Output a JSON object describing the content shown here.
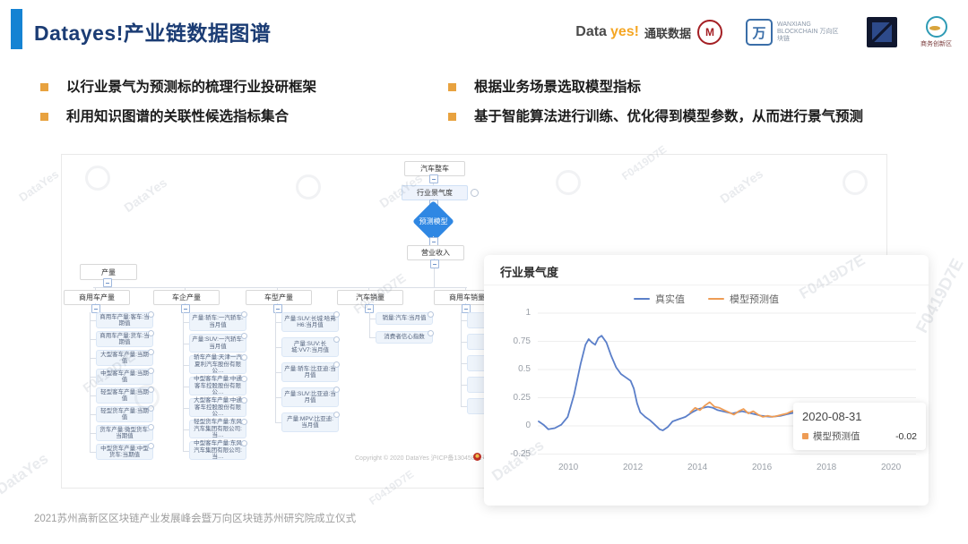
{
  "header": {
    "title": "Datayes!产业链数据图谱"
  },
  "logos": {
    "datayes": {
      "primary": "Data",
      "accent": "yes!",
      "cn": "通联数据",
      "seal_glyph": "M"
    },
    "wanxiang": {
      "glyph": "万",
      "text": "WANXIANG BLOCKCHAIN 万向区块链"
    },
    "innovation": {
      "caption": "商务创新区"
    }
  },
  "bullets": {
    "left": [
      "以行业景气为预测标的梳理行业投研框架",
      "利用知识图谱的关联性候选指标集合"
    ],
    "right": [
      "根据业务场景选取模型指标",
      "基于智能算法进行训练、优化得到模型参数，从而进行景气预测"
    ]
  },
  "flowchart": {
    "nodes": {
      "auto": "汽车整车",
      "prosperity": "行业景气度",
      "model": "预测模型",
      "revenue": "营业收入",
      "production": "产量"
    },
    "columns": [
      {
        "header": "商用车产量",
        "items": [
          "商用车产量:客车:当期值",
          "商用车产量:货车:当期值",
          "大型客车产量:当期值",
          "中型客车产量:当期值",
          "轻型客车产量:当期值",
          "轻型货车产量:当期值",
          "货车产量:微型货车:当期值",
          "中型货车产量:中型货车:当期值"
        ]
      },
      {
        "header": "车企产量",
        "items": [
          "产量:轿车:一汽轿车:当月值",
          "产量:SUV:一汽轿车:当月值",
          "轿车产量:天津一汽夏利汽车股份有限公…",
          "中型客车产量:中通客车控股股份有限公…",
          "大型客车产量:中通客车控股股份有限公…",
          "轻型货车产量:东风汽车集团有限公司:当…",
          "中型客车产量:东风汽车集团有限公司:当…"
        ]
      },
      {
        "header": "车型产量",
        "items": [
          "产量:SUV:长城:哈弗H6:当月值",
          "产量:SUV:长城:VV7:当月值",
          "产量:轿车:比亚迪:当月值",
          "产量:SUV:比亚迪:当月值",
          "产量:MPV:比亚迪:当月值"
        ]
      },
      {
        "header": "汽车销量",
        "items": [
          "销量:汽车:当月值",
          "消费者信心指数"
        ]
      },
      {
        "header": "商用车销量",
        "items": [
          "商用车…",
          "商用车…",
          "商用车…",
          "商用车…",
          "上海汽…"
        ]
      }
    ],
    "copyright": "Copyright © 2020 DataYes  沪ICP备13045831号"
  },
  "chart": {
    "title": "行业景气度",
    "tooltip": {
      "date": "2020-08-31",
      "label": "模型预测值",
      "value": "-0.02"
    }
  },
  "chart_data": {
    "type": "line",
    "title": "行业景气度",
    "xlabel": "",
    "ylabel": "",
    "x_ticks": [
      2010,
      2012,
      2014,
      2016,
      2018,
      2020
    ],
    "y_ticks": [
      1,
      0.75,
      0.5,
      0.25,
      0,
      -0.25
    ],
    "xlim": [
      2009,
      2020.8
    ],
    "ylim": [
      -0.25,
      1
    ],
    "grid": true,
    "legend_position": "top-center",
    "colors": {
      "actual": "#5b7fc9",
      "predicted": "#ee9c55"
    },
    "series": [
      {
        "name": "真实值",
        "color": "#5b7fc9",
        "points": [
          [
            2009.0,
            0.04
          ],
          [
            2009.15,
            0.01
          ],
          [
            2009.3,
            -0.03
          ],
          [
            2009.5,
            -0.02
          ],
          [
            2009.7,
            0.01
          ],
          [
            2009.9,
            0.08
          ],
          [
            2010.1,
            0.28
          ],
          [
            2010.3,
            0.55
          ],
          [
            2010.45,
            0.72
          ],
          [
            2010.55,
            0.77
          ],
          [
            2010.65,
            0.74
          ],
          [
            2010.75,
            0.72
          ],
          [
            2010.85,
            0.78
          ],
          [
            2010.95,
            0.8
          ],
          [
            2011.1,
            0.74
          ],
          [
            2011.25,
            0.62
          ],
          [
            2011.4,
            0.52
          ],
          [
            2011.55,
            0.46
          ],
          [
            2011.7,
            0.43
          ],
          [
            2011.85,
            0.4
          ],
          [
            2011.95,
            0.33
          ],
          [
            2012.05,
            0.2
          ],
          [
            2012.15,
            0.12
          ],
          [
            2012.3,
            0.08
          ],
          [
            2012.45,
            0.05
          ],
          [
            2012.6,
            0.01
          ],
          [
            2012.75,
            -0.03
          ],
          [
            2012.85,
            -0.04
          ],
          [
            2013.0,
            -0.01
          ],
          [
            2013.15,
            0.04
          ],
          [
            2013.35,
            0.06
          ],
          [
            2013.55,
            0.08
          ],
          [
            2013.75,
            0.12
          ],
          [
            2013.95,
            0.15
          ],
          [
            2014.1,
            0.16
          ],
          [
            2014.25,
            0.17
          ],
          [
            2014.4,
            0.16
          ],
          [
            2014.55,
            0.14
          ],
          [
            2014.7,
            0.13
          ],
          [
            2014.85,
            0.12
          ],
          [
            2015.0,
            0.11
          ],
          [
            2015.15,
            0.12
          ],
          [
            2015.3,
            0.13
          ],
          [
            2015.45,
            0.12
          ],
          [
            2015.6,
            0.11
          ],
          [
            2015.75,
            0.1
          ],
          [
            2015.9,
            0.09
          ],
          [
            2016.05,
            0.085
          ],
          [
            2016.2,
            0.08
          ],
          [
            2016.35,
            0.085
          ],
          [
            2016.5,
            0.09
          ],
          [
            2016.65,
            0.1
          ],
          [
            2016.8,
            0.11
          ],
          [
            2016.95,
            0.12
          ],
          [
            2017.1,
            0.13
          ]
        ]
      },
      {
        "name": "模型预测值",
        "color": "#ee9c55",
        "points": [
          [
            2013.7,
            0.12
          ],
          [
            2013.85,
            0.16
          ],
          [
            2014.0,
            0.14
          ],
          [
            2014.15,
            0.18
          ],
          [
            2014.3,
            0.21
          ],
          [
            2014.45,
            0.17
          ],
          [
            2014.6,
            0.16
          ],
          [
            2014.75,
            0.14
          ],
          [
            2014.9,
            0.12
          ],
          [
            2015.05,
            0.1
          ],
          [
            2015.2,
            0.13
          ],
          [
            2015.35,
            0.15
          ],
          [
            2015.5,
            0.11
          ],
          [
            2015.65,
            0.13
          ],
          [
            2015.8,
            0.1
          ],
          [
            2015.95,
            0.08
          ],
          [
            2016.1,
            0.09
          ],
          [
            2016.25,
            0.08
          ],
          [
            2016.4,
            0.09
          ],
          [
            2016.55,
            0.1
          ],
          [
            2016.7,
            0.11
          ],
          [
            2016.85,
            0.13
          ],
          [
            2017.0,
            0.14
          ],
          [
            2017.3,
            0.11
          ],
          [
            2017.7,
            0.07
          ],
          [
            2018.1,
            0.04
          ],
          [
            2018.5,
            0.01
          ],
          [
            2018.9,
            -0.01
          ],
          [
            2019.3,
            -0.02
          ],
          [
            2019.7,
            -0.04
          ],
          [
            2020.0,
            -0.045
          ],
          [
            2020.2,
            -0.04
          ],
          [
            2020.42,
            -0.02
          ],
          [
            2020.6,
            0.0
          ],
          [
            2020.7,
            0.03
          ]
        ]
      }
    ],
    "highlight_point": {
      "series": "模型预测值",
      "date": "2020-08-31",
      "x": 2020.42,
      "y": -0.02,
      "value_label": "-0.02"
    }
  },
  "watermarks": {
    "texts": [
      "DataYes",
      "F0419D7E"
    ]
  },
  "footer": {
    "text": "2021苏州高新区区块链产业发展峰会暨万向区块链苏州研究院成立仪式"
  }
}
